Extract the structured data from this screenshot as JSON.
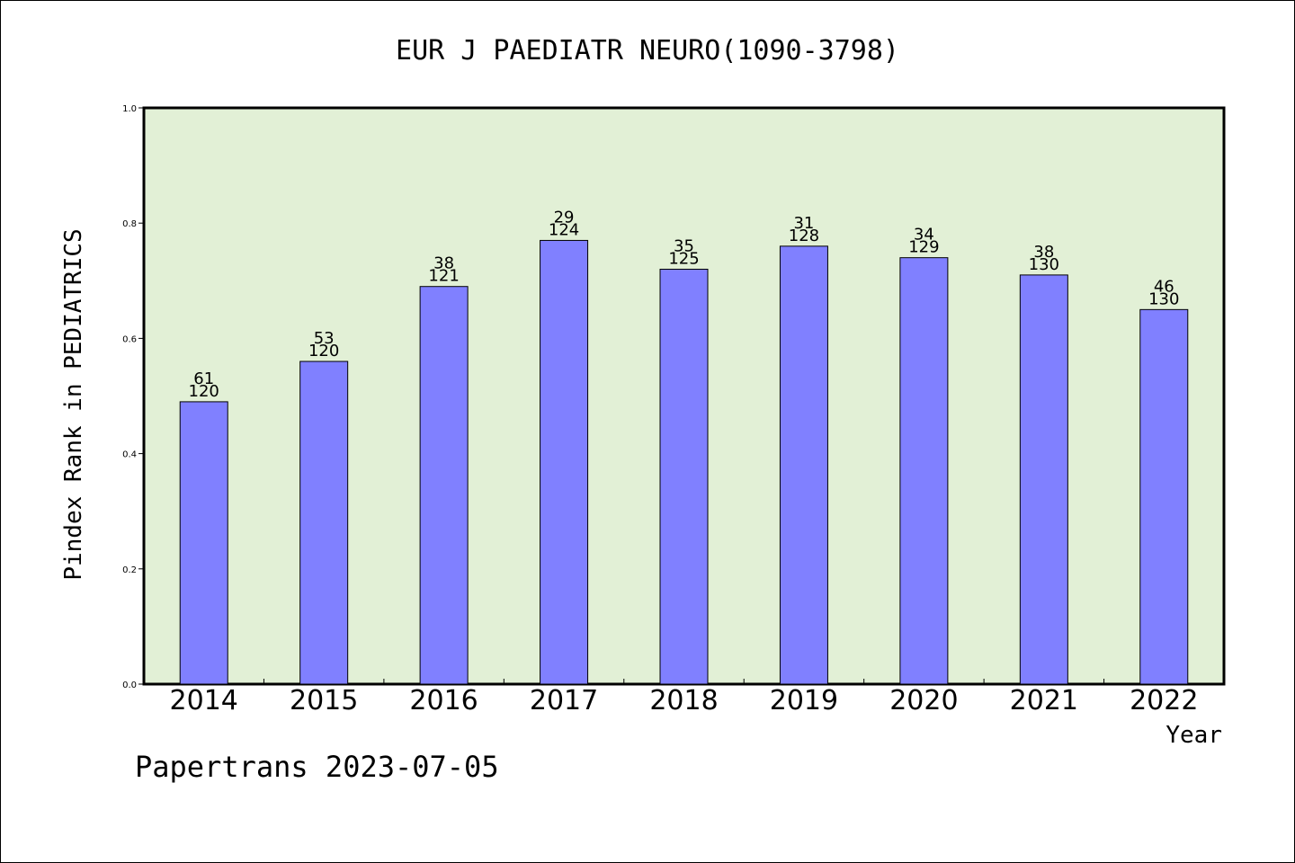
{
  "chart_data": {
    "type": "bar",
    "title": "EUR J PAEDIATR NEURO(1090-3798)",
    "xlabel": "Year",
    "ylabel": "Pindex Rank in PEDIATRICS",
    "footer": "Papertrans 2023-07-05",
    "categories": [
      "2014",
      "2015",
      "2016",
      "2017",
      "2018",
      "2019",
      "2020",
      "2021",
      "2022"
    ],
    "values": [
      0.49,
      0.56,
      0.69,
      0.77,
      0.72,
      0.76,
      0.74,
      0.71,
      0.65
    ],
    "labels_top": [
      "61",
      "53",
      "38",
      "29",
      "35",
      "31",
      "34",
      "38",
      "46"
    ],
    "labels_bottom": [
      "120",
      "120",
      "121",
      "124",
      "125",
      "128",
      "129",
      "130",
      "130"
    ],
    "ylim": [
      0.0,
      1.0
    ],
    "yticks": [
      "0.0",
      "0.2",
      "0.4",
      "0.6",
      "0.8",
      "1.0"
    ],
    "grid": false,
    "colors": {
      "plot_bg": "#e2f0d6",
      "bar": "#8080ff",
      "bar_edge": "#000000"
    }
  }
}
